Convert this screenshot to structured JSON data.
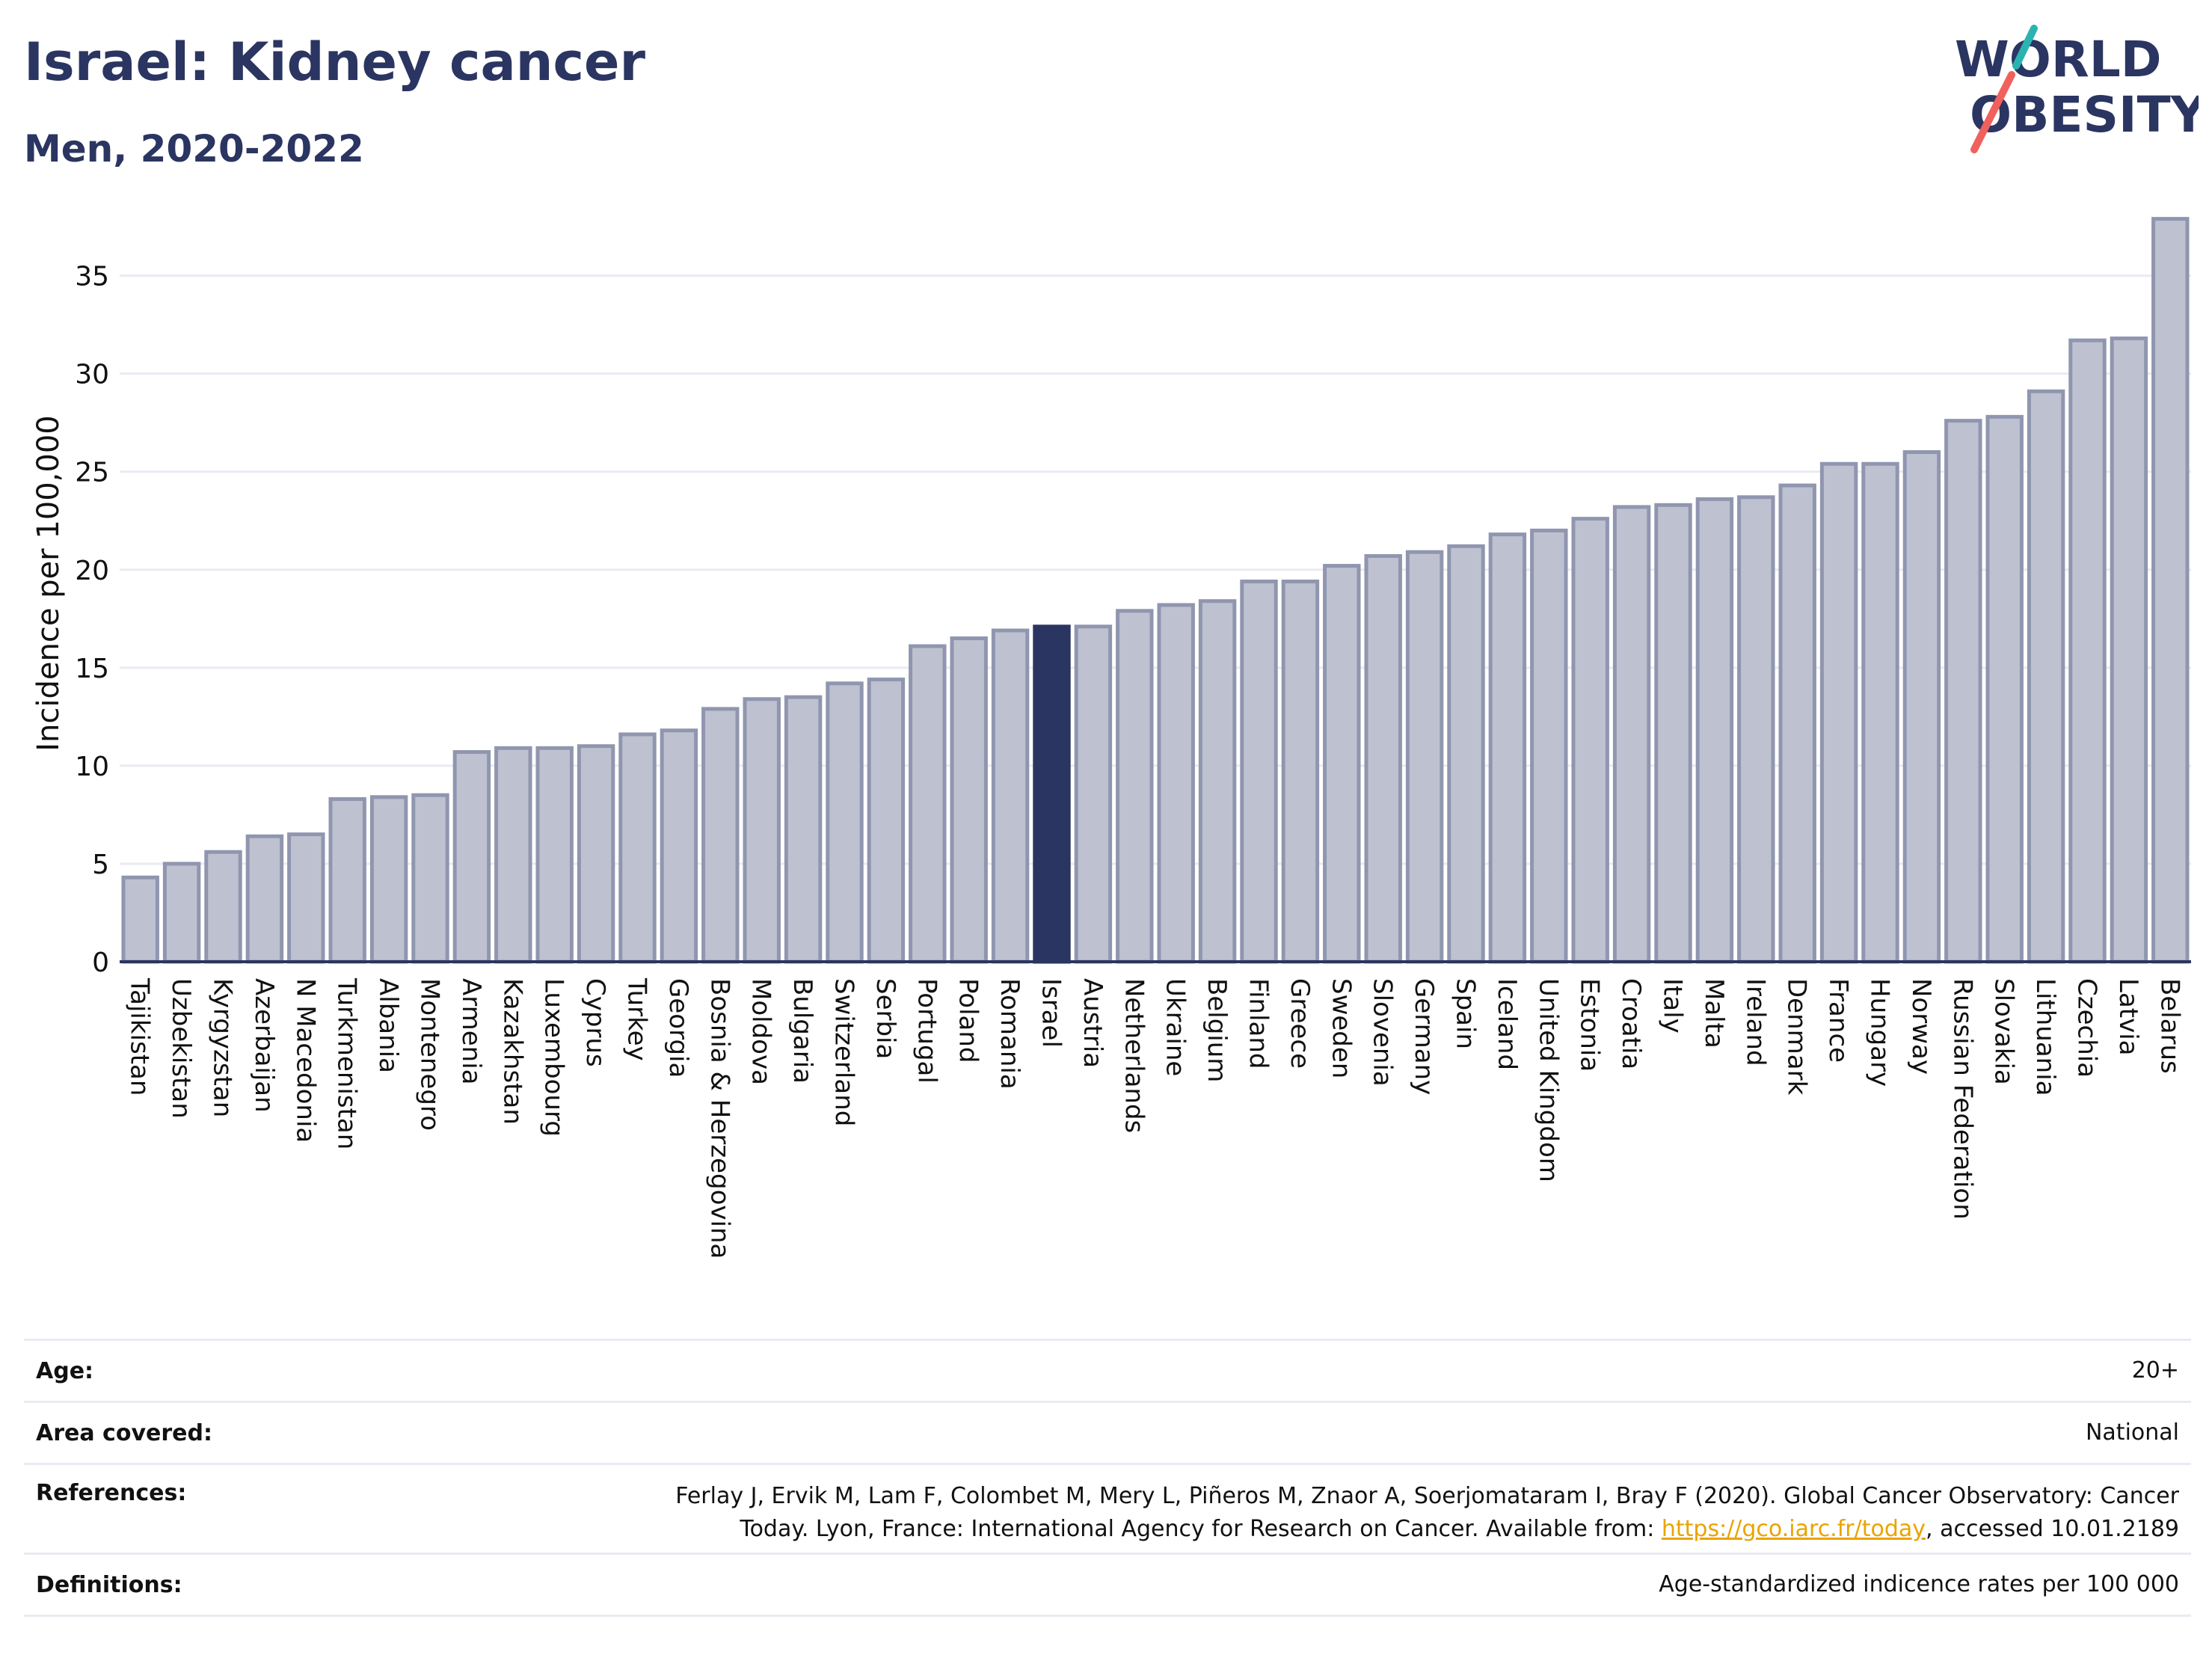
{
  "header": {
    "title": "Israel: Kidney cancer",
    "subtitle": "Men, 2020-2022"
  },
  "logo": {
    "line1": "WORLD",
    "line2": "OBESITY",
    "colors": {
      "text": "#2b3561",
      "slash_top": "#2bb3b1",
      "slash_bottom": "#f0605d"
    }
  },
  "colors": {
    "bar_fill": "#bec2d0",
    "bar_stroke": "#9096af",
    "highlight": "#2b3561",
    "grid": "#e9ebf2",
    "axis": "#2b3561"
  },
  "chart_data": {
    "type": "bar",
    "ylabel": "Incidence per 100,000",
    "xlabel": "",
    "ylim": [
      0,
      38
    ],
    "yticks": [
      0,
      5,
      10,
      15,
      20,
      25,
      30,
      35
    ],
    "grid": true,
    "highlight": "Israel",
    "categories": [
      "Tajikistan",
      "Uzbekistan",
      "Kyrgyzstan",
      "Azerbaijan",
      "N Macedonia",
      "Turkmenistan",
      "Albania",
      "Montenegro",
      "Armenia",
      "Kazakhstan",
      "Luxembourg",
      "Cyprus",
      "Turkey",
      "Georgia",
      "Bosnia & Herzegovina",
      "Moldova",
      "Bulgaria",
      "Switzerland",
      "Serbia",
      "Portugal",
      "Poland",
      "Romania",
      "Israel",
      "Austria",
      "Netherlands",
      "Ukraine",
      "Belgium",
      "Finland",
      "Greece",
      "Sweden",
      "Slovenia",
      "Germany",
      "Spain",
      "Iceland",
      "United Kingdom",
      "Estonia",
      "Croatia",
      "Italy",
      "Malta",
      "Ireland",
      "Denmark",
      "France",
      "Hungary",
      "Norway",
      "Russian Federation",
      "Slovakia",
      "Lithuania",
      "Czechia",
      "Latvia",
      "Belarus"
    ],
    "values": [
      4.3,
      5.0,
      5.6,
      6.4,
      6.5,
      8.3,
      8.4,
      8.5,
      10.7,
      10.9,
      10.9,
      11.0,
      11.6,
      11.8,
      12.9,
      13.4,
      13.5,
      14.2,
      14.4,
      16.1,
      16.5,
      16.9,
      17.1,
      17.1,
      17.9,
      18.2,
      18.4,
      19.4,
      19.4,
      20.2,
      20.7,
      20.9,
      21.2,
      21.8,
      22.0,
      22.6,
      23.2,
      23.3,
      23.6,
      23.7,
      24.3,
      25.4,
      25.4,
      26.0,
      27.6,
      27.8,
      29.1,
      31.7,
      31.8,
      37.9
    ]
  },
  "info": {
    "age_label": "Age:",
    "age_value": "20+",
    "area_label": "Area covered:",
    "area_value": "National",
    "references_label": "References:",
    "references_text_1": "Ferlay J, Ervik M, Lam F, Colombet M, Mery L, Piñeros M, Znaor A, Soerjomataram I, Bray F (2020). Global Cancer Observatory: Cancer",
    "references_text_2": "Today. Lyon, France: International Agency for Research on Cancer. Available from: ",
    "references_link": "https://gco.iarc.fr/today",
    "references_text_3": ", accessed 10.01.2189",
    "definitions_label": "Definitions:",
    "definitions_value": "Age-standardized indicence rates per 100 000"
  }
}
